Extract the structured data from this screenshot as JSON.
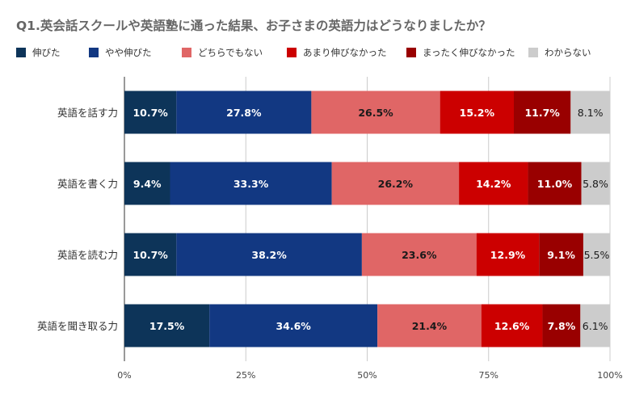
{
  "chart_data": {
    "type": "bar",
    "orientation": "horizontal",
    "stacked": true,
    "percent_stacked": true,
    "title": "Q1.英会話スクールや英語塾に通った結果、お子さまの英語力はどうなりましたか？",
    "categories": [
      "英語を話す力",
      "英語を書く力",
      "英語を読む力",
      "英語を聞き取る力"
    ],
    "series": [
      {
        "name": "伸びた",
        "color": "#0d3459",
        "label_color": "#ffffff",
        "values": [
          10.7,
          9.4,
          10.7,
          17.5
        ],
        "labels": [
          "10.7%",
          "9.4%",
          "10.7%",
          "17.5%"
        ]
      },
      {
        "name": "やや伸びた",
        "color": "#123882",
        "label_color": "#ffffff",
        "values": [
          27.8,
          33.3,
          38.2,
          34.6
        ],
        "labels": [
          "27.8%",
          "33.3%",
          "38.2%",
          "34.6%"
        ]
      },
      {
        "name": "どちらでもない",
        "color": "#e06666",
        "label_color": "#1a1a1a",
        "values": [
          26.5,
          26.2,
          23.6,
          21.4
        ],
        "labels": [
          "26.5%",
          "26.2%",
          "23.6%",
          "21.4%"
        ]
      },
      {
        "name": "あまり伸びなかった",
        "color": "#cc0000",
        "label_color": "#ffffff",
        "values": [
          15.2,
          14.2,
          12.9,
          12.6
        ],
        "labels": [
          "15.2%",
          "14.2%",
          "12.9%",
          "12.6%"
        ]
      },
      {
        "name": "まったく伸びなかった",
        "color": "#990000",
        "label_color": "#ffffff",
        "values": [
          11.7,
          11.0,
          9.1,
          7.8
        ],
        "labels": [
          "11.7%",
          "11.0%",
          "9.1%",
          "7.8%"
        ]
      },
      {
        "name": "わからない",
        "color": "#cccccc",
        "label_color": "#1a1a1a",
        "values": [
          8.1,
          5.8,
          5.5,
          6.1
        ],
        "labels": [
          "8.1%",
          "5.8%",
          "5.5%",
          "6.1%"
        ]
      }
    ],
    "x_ticks": [
      "0%",
      "25%",
      "50%",
      "75%",
      "100%"
    ],
    "xlim": [
      0,
      100
    ],
    "xlabel": "",
    "ylabel": "",
    "grid": true,
    "legend_position": "top"
  }
}
